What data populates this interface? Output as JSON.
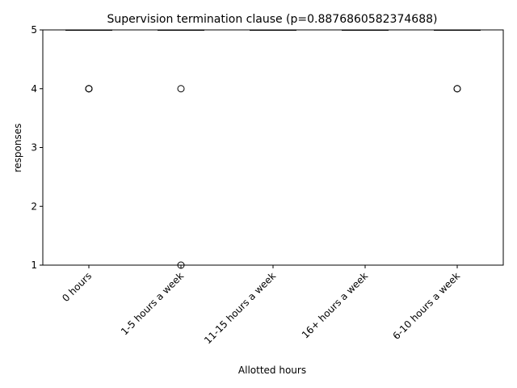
{
  "chart_data": {
    "type": "box",
    "title": "Supervision termination clause (p=0.8876860582374688)",
    "xlabel": "Allotted hours",
    "ylabel": "responses",
    "ylim": [
      1,
      5
    ],
    "yticks": [
      1,
      2,
      3,
      4,
      5
    ],
    "grid": false,
    "legend": "none",
    "categories": [
      "0 hours",
      "1-5 hours a week",
      "11-15 hours a week",
      "16+ hours a week",
      "6-10 hours a week"
    ],
    "boxes": [
      {
        "q1": 5,
        "median": 5,
        "q3": 5,
        "whisker_low": 5,
        "whisker_high": 5,
        "outliers": [
          4,
          4,
          4
        ]
      },
      {
        "q1": 5,
        "median": 5,
        "q3": 5,
        "whisker_low": 5,
        "whisker_high": 5,
        "outliers": [
          4,
          1
        ]
      },
      {
        "q1": 5,
        "median": 5,
        "q3": 5,
        "whisker_low": 5,
        "whisker_high": 5,
        "outliers": []
      },
      {
        "q1": 5,
        "median": 5,
        "q3": 5,
        "whisker_low": 5,
        "whisker_high": 5,
        "outliers": []
      },
      {
        "q1": 5,
        "median": 5,
        "q3": 5,
        "whisker_low": 5,
        "whisker_high": 5,
        "outliers": [
          4,
          4
        ]
      }
    ],
    "colors": {
      "median": "#ff7f0e",
      "box": "#000000",
      "axis": "#000000"
    }
  }
}
